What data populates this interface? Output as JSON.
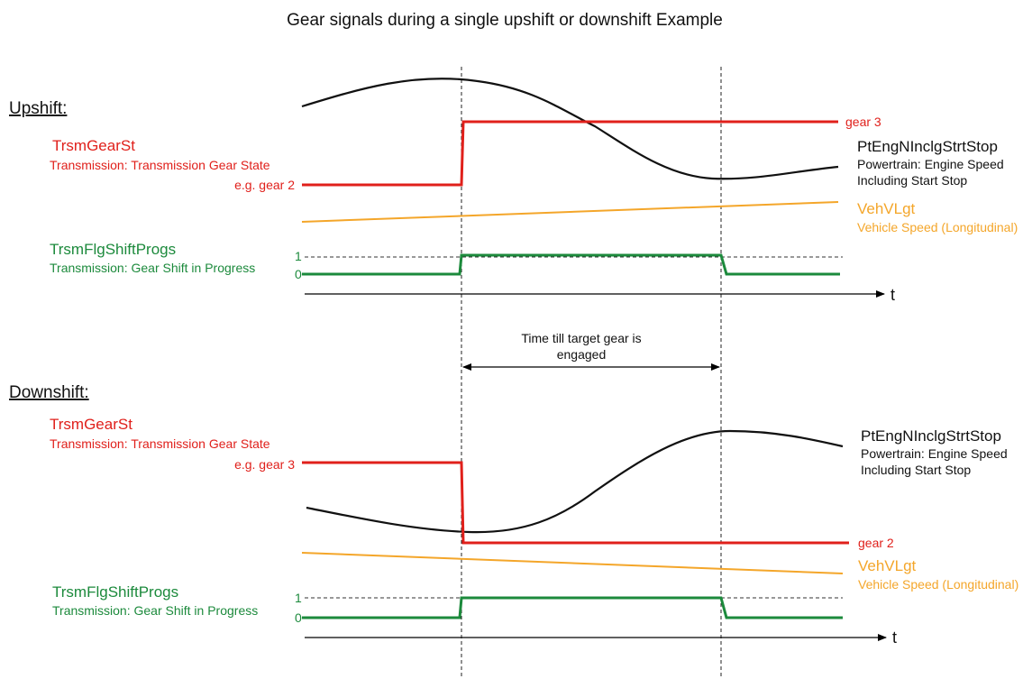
{
  "title": "Gear signals during a single upshift or downshift Example",
  "colors": {
    "gear": "#e0201b",
    "speed": "#f4a62a",
    "shift": "#1c8a3c",
    "engine": "#111111",
    "axis": "#000000"
  },
  "upshift": {
    "heading": "Upshift:",
    "gear_name": "TrsmGearSt",
    "gear_desc": "Transmission: Transmission Gear State",
    "gear_before": "e.g. gear 2",
    "gear_after": "gear 3",
    "engine_name": "PtEngNInclgStrtStop",
    "engine_desc_1": "Powertrain: Engine Speed",
    "engine_desc_2": "Including Start Stop",
    "speed_name": "VehVLgt",
    "speed_desc": "Vehicle Speed (Longitudinal)",
    "shift_name": "TrsmFlgShiftProgs",
    "shift_desc": "Transmission: Gear Shift in Progress",
    "level_1": "1",
    "level_0": "0",
    "axis_label": "t"
  },
  "interval": {
    "line1": "Time till target gear is",
    "line2": "engaged"
  },
  "downshift": {
    "heading": "Downshift:",
    "gear_name": "TrsmGearSt",
    "gear_desc": "Transmission: Transmission Gear State",
    "gear_before": "e.g. gear 3",
    "gear_after": "gear 2",
    "engine_name": "PtEngNInclgStrtStop",
    "engine_desc_1": "Powertrain: Engine Speed",
    "engine_desc_2": "Including Start Stop",
    "speed_name": "VehVLgt",
    "speed_desc": "Vehicle Speed (Longitudinal)",
    "shift_name": "TrsmFlgShiftProgs",
    "shift_desc": "Transmission: Gear Shift in Progress",
    "level_1": "1",
    "level_0": "0",
    "axis_label": "t"
  }
}
